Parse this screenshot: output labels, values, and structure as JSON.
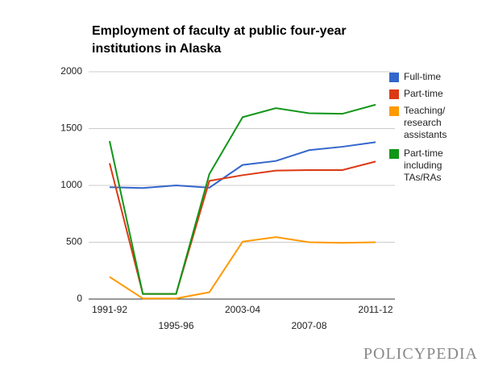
{
  "chart_data": {
    "type": "line",
    "title": "Employment of faculty at public four-year institutions in Alaska",
    "categories": [
      "1991-92",
      null,
      "1995-96",
      null,
      "2003-04",
      null,
      "2007-08",
      null,
      "2011-12"
    ],
    "series": [
      {
        "name": "Full-time",
        "color": "#3366cc",
        "values": [
          984,
          977,
          1000,
          980,
          1180,
          1215,
          1310,
          1340,
          1380
        ]
      },
      {
        "name": "Part-time",
        "color": "#dc3912",
        "values": [
          1195,
          45,
          45,
          1040,
          1090,
          1130,
          1135,
          1135,
          1210
        ]
      },
      {
        "name": "Teaching/ research assistants",
        "color": "#ff9900",
        "values": [
          195,
          5,
          5,
          60,
          505,
          545,
          500,
          495,
          500
        ]
      },
      {
        "name": "Part-time including TAs/RAs",
        "color": "#109618",
        "values": [
          1390,
          45,
          45,
          1100,
          1600,
          1680,
          1635,
          1630,
          1710
        ]
      }
    ],
    "ylim": [
      0,
      2000
    ],
    "yticks": [
      0,
      500,
      1000,
      1500,
      2000
    ],
    "grid": true,
    "legend": "right",
    "logo": "POLICYPEDIA"
  }
}
